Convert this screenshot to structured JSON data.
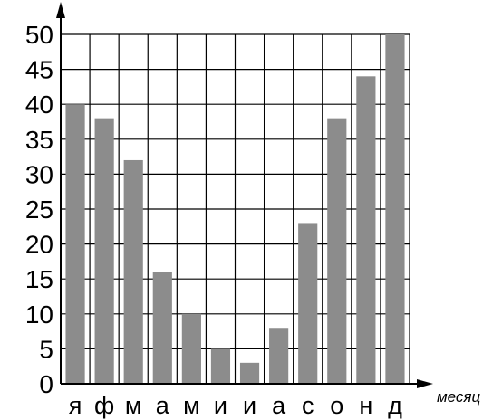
{
  "chart_data": {
    "type": "bar",
    "categories": [
      "я",
      "ф",
      "м",
      "а",
      "м",
      "и",
      "и",
      "а",
      "с",
      "о",
      "н",
      "д"
    ],
    "values": [
      40,
      38,
      32,
      16,
      10,
      5,
      3,
      8,
      23,
      38,
      44,
      50
    ],
    "xlabel": "месяц",
    "ylabel": "",
    "ylim": [
      0,
      50
    ],
    "y_ticks": [
      0,
      5,
      10,
      15,
      20,
      25,
      30,
      35,
      40,
      45,
      50
    ],
    "grid": true,
    "colors": {
      "bar": "#8c8c8c",
      "grid": "#000000",
      "axis": "#000000",
      "background": "#ffffff"
    }
  }
}
